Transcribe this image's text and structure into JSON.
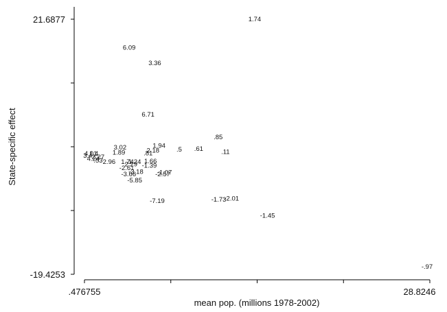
{
  "chart_data": {
    "type": "scatter",
    "title": "",
    "xlabel": "mean pop. (millions 1978-2002)",
    "ylabel": "State-specific effect",
    "xlim": [
      0.476755,
      28.8246
    ],
    "ylim": [
      -19.4253,
      21.6877
    ],
    "x_tick_labels": [
      ".476755",
      "28.8246"
    ],
    "y_tick_labels": [
      "21.6877",
      "-19.4253"
    ],
    "grid": false,
    "marker": "label-only",
    "points": [
      {
        "x": 14.45,
        "y": 21.69,
        "label": "1.74"
      },
      {
        "x": 4.15,
        "y": 17.1,
        "label": "6.09"
      },
      {
        "x": 6.25,
        "y": 14.6,
        "label": "3.36"
      },
      {
        "x": 5.7,
        "y": 6.3,
        "label": "6.71"
      },
      {
        "x": 11.45,
        "y": 2.7,
        "label": ".85"
      },
      {
        "x": 6.6,
        "y": 1.3,
        "label": "1.94"
      },
      {
        "x": 8.25,
        "y": 0.7,
        "label": ".5"
      },
      {
        "x": 9.85,
        "y": 0.8,
        "label": ".61"
      },
      {
        "x": 12.05,
        "y": 0.3,
        "label": ".11"
      },
      {
        "x": 3.4,
        "y": 1.0,
        "label": "3.02"
      },
      {
        "x": 6.1,
        "y": 0.5,
        "label": "2.18"
      },
      {
        "x": 5.7,
        "y": 0.1,
        "label": ".81"
      },
      {
        "x": 3.3,
        "y": 0.2,
        "label": "1.89"
      },
      {
        "x": 1.0,
        "y": 0.0,
        "label": "4.01"
      },
      {
        "x": 1.25,
        "y": 0.0,
        "label": "1.4"
      },
      {
        "x": 0.75,
        "y": -0.3,
        "label": "3.4"
      },
      {
        "x": 1.2,
        "y": -0.8,
        "label": "4.24"
      },
      {
        "x": 1.6,
        "y": -0.5,
        "label": "2.27"
      },
      {
        "x": 1.6,
        "y": -1.1,
        "label": ".53"
      },
      {
        "x": 2.5,
        "y": -1.3,
        "label": "2.96"
      },
      {
        "x": 4.0,
        "y": -1.3,
        "label": "1.74"
      },
      {
        "x": 4.6,
        "y": -1.3,
        "label": "1.24"
      },
      {
        "x": 5.9,
        "y": -1.2,
        "label": "1.66"
      },
      {
        "x": 4.3,
        "y": -1.7,
        "label": "2.29"
      },
      {
        "x": 5.8,
        "y": -1.9,
        "label": "-1.39"
      },
      {
        "x": 3.95,
        "y": -2.3,
        "label": "-2.61"
      },
      {
        "x": 4.7,
        "y": -2.9,
        "label": "-3.18"
      },
      {
        "x": 4.1,
        "y": -3.3,
        "label": "-3.66"
      },
      {
        "x": 7.05,
        "y": -3.0,
        "label": "-1.07"
      },
      {
        "x": 6.9,
        "y": -3.3,
        "label": "-2.57"
      },
      {
        "x": 4.6,
        "y": -4.3,
        "label": "-5.85"
      },
      {
        "x": 6.45,
        "y": -7.6,
        "label": "-7.19"
      },
      {
        "x": 11.5,
        "y": -7.4,
        "label": "-1.73"
      },
      {
        "x": 12.55,
        "y": -7.2,
        "label": "-2.01"
      },
      {
        "x": 15.5,
        "y": -10.0,
        "label": "-1.45"
      },
      {
        "x": 28.6,
        "y": -18.2,
        "label": "-.97"
      }
    ]
  }
}
